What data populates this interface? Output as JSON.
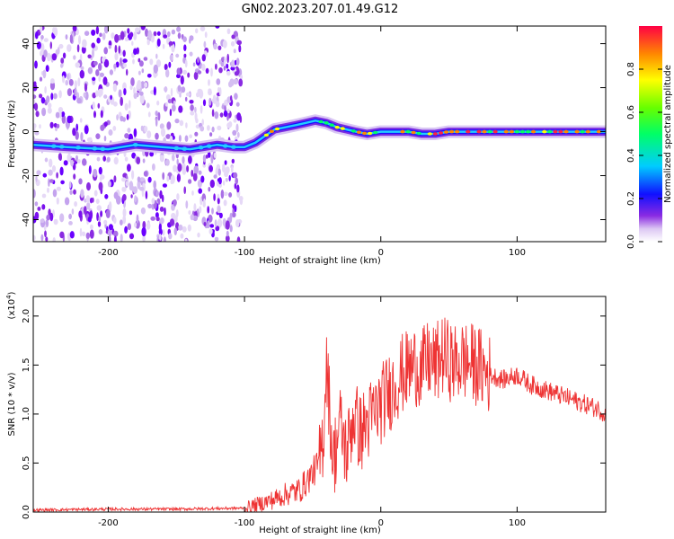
{
  "title": "GN02.2023.207.01.49.G12",
  "chart_data": [
    {
      "type": "heatmap",
      "xlabel": "Height of straight line (km)",
      "ylabel": "Frequency (Hz)",
      "xlim": [
        -255,
        165
      ],
      "ylim": [
        -50,
        48
      ],
      "x_ticks": [
        -200,
        -100,
        0,
        100
      ],
      "y_ticks": [
        40,
        20,
        0,
        -20,
        -40
      ],
      "x_tick_labels": [
        "-200",
        "-100",
        "0",
        "100"
      ],
      "y_tick_labels": [
        "40",
        "20",
        "0",
        "-20",
        "-40"
      ],
      "ridge": {
        "x": [
          -255,
          -230,
          -200,
          -180,
          -160,
          -140,
          -120,
          -108,
          -100,
          -92,
          -85,
          -78,
          -70,
          -62,
          -55,
          -48,
          -40,
          -32,
          -25,
          -18,
          -10,
          0,
          10,
          20,
          30,
          40,
          50,
          60,
          80,
          100,
          130,
          165
        ],
        "y": [
          -6,
          -7,
          -8,
          -6,
          -7,
          -8,
          -6,
          -7,
          -7,
          -5,
          -2,
          1,
          2,
          3,
          4,
          5,
          4,
          2,
          1,
          0,
          -1,
          0,
          0,
          0,
          -1,
          -1,
          0,
          0,
          0,
          0,
          0,
          0
        ]
      },
      "noise_region_x": [
        -255,
        -102
      ],
      "colorbar": {
        "label": "Normalized spectral amplitude",
        "range": [
          0,
          1
        ],
        "ticks": [
          0.0,
          0.2,
          0.4,
          0.6,
          0.8
        ],
        "tick_labels": [
          "0.0",
          "0.2",
          "0.4",
          "0.6",
          "0.8"
        ]
      }
    },
    {
      "type": "line",
      "xlabel": "Height of straight line (km)",
      "ylabel": "SNR (10 * v/v)",
      "y_scale_label": "(x10",
      "y_scale_exp": "4",
      "y_scale_close": ")",
      "xlim": [
        -255,
        165
      ],
      "ylim": [
        0,
        2.2
      ],
      "x_ticks": [
        -200,
        -100,
        0,
        100
      ],
      "y_ticks": [
        0.0,
        0.5,
        1.0,
        1.5,
        2.0
      ],
      "x_tick_labels": [
        "-200",
        "-100",
        "0",
        "100"
      ],
      "y_tick_labels": [
        "0.0",
        "0.5",
        "1.0",
        "1.5",
        "2.0"
      ],
      "color": "#ee3333",
      "series": [
        {
          "x": [
            -255,
            -200,
            -150,
            -100,
            -90,
            -80,
            -70,
            -60,
            -55,
            -50,
            -45,
            -42,
            -40,
            -35,
            -30,
            -25,
            -20,
            -15,
            -10,
            -5,
            0,
            5,
            10,
            15,
            20,
            25,
            30,
            35,
            40,
            45,
            50,
            55,
            60,
            70,
            80,
            90,
            100,
            110,
            120,
            130,
            140,
            150,
            160,
            165
          ],
          "y": [
            0.02,
            0.03,
            0.03,
            0.04,
            0.08,
            0.12,
            0.18,
            0.22,
            0.3,
            0.4,
            0.5,
            0.8,
            1.6,
            0.5,
            0.9,
            0.6,
            1.0,
            0.8,
            0.9,
            1.0,
            1.1,
            1.2,
            1.3,
            1.4,
            1.45,
            1.5,
            1.45,
            1.55,
            1.5,
            1.6,
            1.55,
            1.5,
            1.55,
            1.5,
            1.4,
            1.35,
            1.4,
            1.3,
            1.25,
            1.2,
            1.15,
            1.1,
            1.05,
            1.0
          ]
        }
      ]
    }
  ]
}
